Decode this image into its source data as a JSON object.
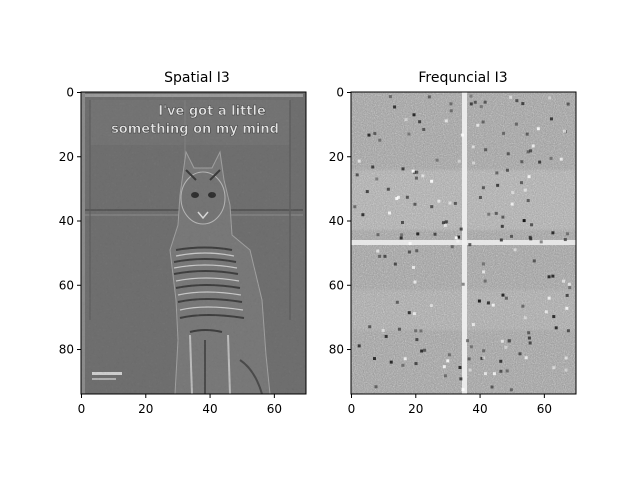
{
  "figure": {
    "background": "#ffffff"
  },
  "chart_data": [
    {
      "type": "image",
      "title": "Spatial I3",
      "xlabel": "",
      "ylabel": "",
      "xlim": [
        0,
        70
      ],
      "ylim": [
        94,
        0
      ],
      "xticks": [
        0,
        20,
        40,
        60
      ],
      "yticks": [
        0,
        20,
        40,
        60,
        80
      ],
      "colormap": "gray",
      "content": "grayscale cat photo",
      "caption_text_in_image": [
        "I've got a little",
        "something on my mind"
      ]
    },
    {
      "type": "image",
      "title": "Frequncial I3",
      "xlabel": "",
      "ylabel": "",
      "xlim": [
        0,
        70
      ],
      "ylim": [
        94,
        0
      ],
      "xticks": [
        0,
        20,
        40,
        60
      ],
      "yticks": [
        0,
        20,
        40,
        60,
        80
      ],
      "colormap": "gray",
      "content": "noise-like frequency magnitude map with bright cross"
    }
  ]
}
